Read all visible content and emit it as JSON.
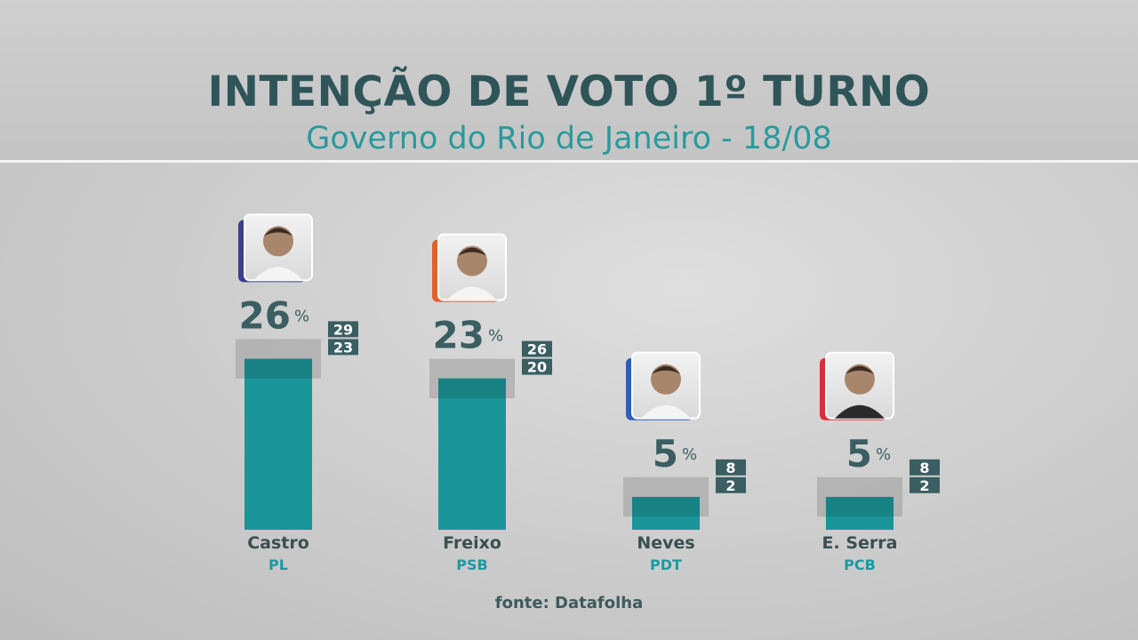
{
  "header": {
    "title": "INTENÇÃO DE VOTO 1º TURNO",
    "subtitle": "Governo do Rio de Janeiro - 18/08"
  },
  "source": "fonte: Datafolha",
  "colors": {
    "bar": "#1a959a",
    "bar_dark": "#187f83",
    "value": "#3a5e62",
    "party": "#1a9aa0",
    "name": "#3b4f51",
    "band": "#9c9c9c",
    "range_box": "#3a5e62"
  },
  "chart_data": {
    "type": "bar",
    "title": "INTENÇÃO DE VOTO 1º TURNO",
    "subtitle": "Governo do Rio de Janeiro - 18/08",
    "unit": "%",
    "categories": [
      "Castro",
      "Freixo",
      "Neves",
      "E. Serra"
    ],
    "parties": [
      "PL",
      "PSB",
      "PDT",
      "PCB"
    ],
    "values": [
      26,
      23,
      5,
      5
    ],
    "upper": [
      29,
      26,
      8,
      8
    ],
    "lower": [
      23,
      20,
      2,
      2
    ],
    "photo_accent_colors": [
      "#3b3f8f",
      "#e0622b",
      "#2f5fb5",
      "#d8303a"
    ],
    "ylim": [
      0,
      30
    ],
    "grid": false,
    "legend": "none"
  }
}
